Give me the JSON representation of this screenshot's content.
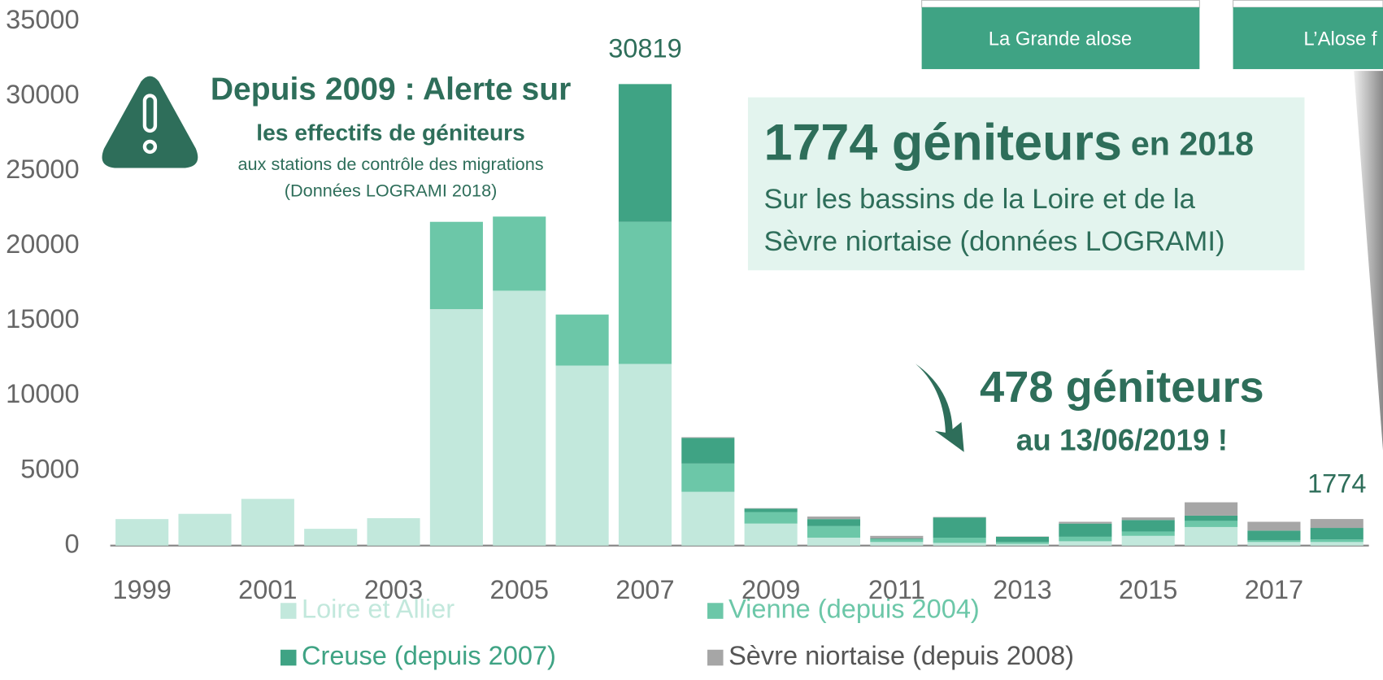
{
  "chart_data": {
    "type": "stacked_bar",
    "categories": [
      "1999",
      null,
      "2001",
      null,
      "2003",
      null,
      "2005",
      null,
      "2007",
      null,
      "2009",
      null,
      "2011",
      null,
      "2013",
      null,
      "2015",
      null,
      "2017",
      null
    ],
    "series": [
      {
        "name": "Loire et Allier",
        "color": "#c2e8dc",
        "values": [
          1770,
          2120,
          3120,
          1120,
          1830,
          15790,
          17020,
          12020,
          12130,
          3590,
          1470,
          530,
          240,
          180,
          120,
          290,
          650,
          1240,
          240,
          240
        ]
      },
      {
        "name": "Vienne (depuis 2004)",
        "color": "#6cc7a8",
        "values": [
          0,
          0,
          0,
          0,
          0,
          5830,
          4950,
          3410,
          9490,
          1890,
          770,
          770,
          170,
          350,
          120,
          300,
          290,
          410,
          110,
          170
        ]
      },
      {
        "name": "Creuse (depuis 2007)",
        "color": "#3fa384",
        "values": [
          0,
          0,
          0,
          0,
          0,
          0,
          0,
          0,
          9199,
          1710,
          230,
          470,
          60,
          1350,
          350,
          880,
          770,
          350,
          650,
          770
        ]
      },
      {
        "name": "Sèvre niortaise (depuis 2008)",
        "color": "#a6a6a6",
        "values": [
          0,
          0,
          0,
          0,
          0,
          0,
          0,
          0,
          0,
          50,
          30,
          170,
          180,
          30,
          20,
          120,
          170,
          890,
          590,
          594
        ]
      }
    ],
    "totals": [
      null,
      null,
      null,
      null,
      null,
      null,
      null,
      null,
      30819,
      null,
      null,
      null,
      null,
      null,
      null,
      null,
      null,
      null,
      null,
      1774
    ],
    "ylim": [
      0,
      35000
    ],
    "yticks": [
      0,
      5000,
      10000,
      15000,
      20000,
      25000,
      30000,
      35000
    ],
    "grid": false,
    "alert": {
      "title": "Depuis 2009 : Alerte sur",
      "line1": "les effectifs  de géniteurs",
      "line2": "aux stations de contrôle des migrations",
      "line3": "(Données LOGRAMI 2018)"
    },
    "info": {
      "big": "1774 géniteurs",
      "small": "en 2018",
      "line1": "Sur les bassins de la Loire et de la",
      "line2": "Sèvre niortaise (données LOGRAMI)"
    },
    "callout": {
      "line1": "478 géniteurs",
      "line2": "au 13/06/2019 !"
    }
  },
  "buttons": [
    "La Grande alose",
    "L’Alose f"
  ]
}
